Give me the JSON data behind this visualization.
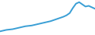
{
  "x": [
    0,
    1,
    2,
    3,
    4,
    5,
    6,
    7,
    8,
    9,
    10,
    11,
    12,
    13,
    14,
    15,
    16,
    17,
    18,
    19,
    20,
    21,
    22,
    23,
    24,
    25,
    26,
    27,
    28,
    29,
    30
  ],
  "y": [
    1.0,
    1.1,
    1.2,
    1.25,
    1.3,
    1.4,
    1.5,
    1.6,
    1.7,
    1.75,
    1.8,
    1.9,
    2.0,
    2.1,
    2.2,
    2.3,
    2.4,
    2.55,
    2.7,
    2.85,
    3.0,
    3.2,
    3.5,
    4.2,
    4.8,
    5.0,
    4.7,
    4.4,
    4.5,
    4.3,
    4.1
  ],
  "line_color": "#3a9fd5",
  "linewidth": 1.4,
  "background_color": "#ffffff"
}
